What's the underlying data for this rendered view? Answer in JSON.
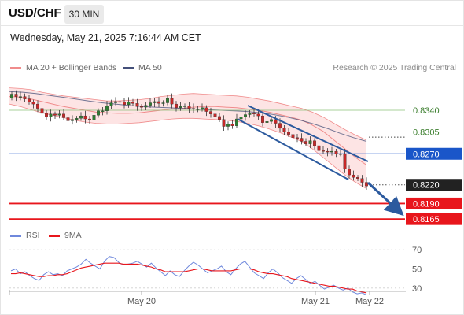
{
  "header": {
    "symbol": "USD/CHF",
    "timeframe": "30 MIN",
    "timestamp": "Wednesday, May 21, 2025 7:16:44 AM CET"
  },
  "legend": {
    "bb_label": "MA 20 + Bollinger Bands",
    "ma50_label": "MA 50",
    "rsi_label": "RSI",
    "rsi_ma_label": "9MA"
  },
  "copyright": "Research © 2025 Trading Central",
  "colors": {
    "bollinger": "#f08c8c",
    "bollinger_fill": "#fde4e4",
    "ma50": "#44507a",
    "resistance": "#8cc07a",
    "pivot": "#1a56c9",
    "support": "#e8161c",
    "current": "#222222",
    "rsi": "#6f88dc",
    "rsi_ma": "#e8161c",
    "channel": "#2c5a9e",
    "candle_up": "#2e7d32",
    "candle_down": "#c62828"
  },
  "chart_data": [
    {
      "type": "line",
      "title": "USD/CHF 30 MIN",
      "xlabel": "",
      "ylabel": "",
      "x_ticks": [
        "May 20",
        "May 21",
        "May 22"
      ],
      "ylim": [
        0.815,
        0.8378
      ],
      "levels": [
        {
          "name": "resistance-2",
          "value": 0.834,
          "label": "0.8340",
          "kind": "resistance"
        },
        {
          "name": "resistance-1",
          "value": 0.8305,
          "label": "0.8305",
          "kind": "resistance"
        },
        {
          "name": "pivot",
          "value": 0.827,
          "label": "0.8270",
          "kind": "pivot"
        },
        {
          "name": "current-price",
          "value": 0.822,
          "label": "0.8220",
          "kind": "current"
        },
        {
          "name": "support-1",
          "value": 0.819,
          "label": "0.8190",
          "kind": "support"
        },
        {
          "name": "support-2",
          "value": 0.8165,
          "label": "0.8165",
          "kind": "support"
        }
      ],
      "price_series": [
        0.8366,
        0.8362,
        0.8362,
        0.8358,
        0.8353,
        0.835,
        0.8343,
        0.8335,
        0.8329,
        0.8334,
        0.8332,
        0.8334,
        0.8328,
        0.8323,
        0.8325,
        0.8327,
        0.8331,
        0.8326,
        0.8324,
        0.8332,
        0.8339,
        0.8339,
        0.8347,
        0.8352,
        0.8354,
        0.8353,
        0.8349,
        0.8353,
        0.8351,
        0.8346,
        0.8345,
        0.8348,
        0.8352,
        0.8354,
        0.8351,
        0.8352,
        0.8359,
        0.835,
        0.8344,
        0.8346,
        0.8347,
        0.8343,
        0.8342,
        0.8342,
        0.8344,
        0.8338,
        0.8334,
        0.833,
        0.8325,
        0.8314,
        0.8318,
        0.8315,
        0.8326,
        0.8329,
        0.8333,
        0.8336,
        0.8334,
        0.8331,
        0.832,
        0.8322,
        0.8325,
        0.8319,
        0.8311,
        0.8305,
        0.8301,
        0.8296,
        0.8295,
        0.829,
        0.8286,
        0.8291,
        0.8283,
        0.8275,
        0.8274,
        0.8273,
        0.8274,
        0.827,
        0.827,
        0.8246,
        0.8236,
        0.8232,
        0.823,
        0.8224,
        0.8218
      ],
      "candle_step": 6,
      "bollinger_mid": [
        0.8362,
        0.8361,
        0.8358,
        0.8354,
        0.835,
        0.8346,
        0.8343,
        0.834,
        0.8337,
        0.8336,
        0.8335,
        0.8335,
        0.8336,
        0.8338,
        0.834,
        0.8342,
        0.8343,
        0.8345,
        0.8346,
        0.8346,
        0.8345,
        0.8344,
        0.8342,
        0.834,
        0.8337,
        0.8333,
        0.8329,
        0.8324,
        0.8316,
        0.8306,
        0.8292,
        0.8278,
        0.8264,
        0.8252
      ],
      "bollinger_upper": [
        0.8376,
        0.8375,
        0.8373,
        0.8369,
        0.8366,
        0.8363,
        0.8361,
        0.8359,
        0.8357,
        0.8355,
        0.8355,
        0.8356,
        0.8357,
        0.8359,
        0.8362,
        0.8364,
        0.8366,
        0.8367,
        0.8366,
        0.8365,
        0.8364,
        0.8363,
        0.8361,
        0.8358,
        0.8355,
        0.8351,
        0.8347,
        0.8343,
        0.8337,
        0.8329,
        0.8319,
        0.8309,
        0.83,
        0.8292
      ],
      "bollinger_lower": [
        0.835,
        0.8346,
        0.8341,
        0.8336,
        0.8332,
        0.8328,
        0.8324,
        0.8321,
        0.8319,
        0.8318,
        0.8318,
        0.8319,
        0.832,
        0.8322,
        0.8324,
        0.8326,
        0.8327,
        0.8327,
        0.8326,
        0.8325,
        0.8324,
        0.8322,
        0.8319,
        0.8315,
        0.831,
        0.8304,
        0.8297,
        0.829,
        0.8278,
        0.8264,
        0.825,
        0.8236,
        0.8224,
        0.8214
      ],
      "ma50": [
        0.837,
        0.8369,
        0.8367,
        0.8364,
        0.8361,
        0.8358,
        0.8355,
        0.8352,
        0.835,
        0.8348,
        0.8346,
        0.8345,
        0.8344,
        0.8343,
        0.8342,
        0.8341,
        0.834,
        0.8339,
        0.8338,
        0.8336,
        0.8333,
        0.8329,
        0.8324,
        0.8318,
        0.8311,
        0.8303,
        0.8296,
        0.829
      ]
    },
    {
      "type": "line",
      "title": "",
      "xlabel": "",
      "ylabel": "",
      "y_ticks": [
        70,
        50,
        30
      ],
      "ylim": [
        20,
        80
      ],
      "series": [
        {
          "name": "RSI",
          "values": [
            48,
            50,
            45,
            47,
            43,
            40,
            38,
            44,
            47,
            44,
            45,
            43,
            48,
            50,
            52,
            55,
            60,
            56,
            53,
            50,
            58,
            63,
            62,
            57,
            54,
            55,
            56,
            58,
            55,
            52,
            56,
            51,
            47,
            43,
            48,
            44,
            42,
            48,
            53,
            57,
            54,
            50,
            46,
            48,
            50,
            53,
            47,
            44,
            50,
            55,
            58,
            52,
            46,
            43,
            40,
            46,
            50,
            46,
            41,
            38,
            35,
            40,
            43,
            39,
            35,
            37,
            33,
            29,
            31,
            33,
            30,
            28,
            30,
            26,
            24,
            25,
            23
          ]
        },
        {
          "name": "9MA",
          "values": [
            45,
            45,
            46,
            45,
            44,
            43,
            42,
            42,
            43,
            43,
            44,
            44,
            45,
            47,
            49,
            51,
            52,
            53,
            54,
            55,
            56,
            56,
            56,
            56,
            55,
            55,
            55,
            55,
            54,
            53,
            52,
            50,
            49,
            47,
            47,
            47,
            47,
            47,
            48,
            49,
            50,
            50,
            49,
            48,
            48,
            48,
            48,
            48,
            49,
            50,
            50,
            50,
            49,
            47,
            46,
            45,
            45,
            44,
            43,
            42,
            40,
            39,
            38,
            37,
            36,
            35,
            34,
            33,
            32,
            32,
            31,
            30,
            29,
            29,
            27,
            26,
            25
          ]
        }
      ]
    }
  ]
}
